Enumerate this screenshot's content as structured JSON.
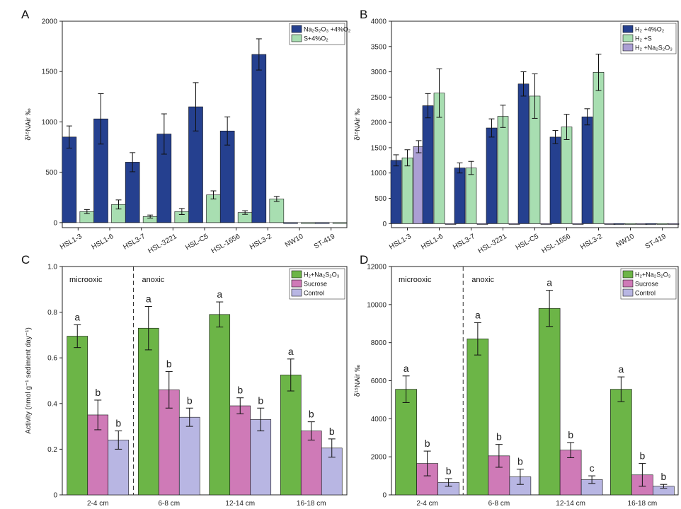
{
  "colors": {
    "navy": "#25408f",
    "green_light": "#a8deb1",
    "lavender": "#ab9fd4",
    "green_dark": "#6cb547",
    "pink": "#cf7ab7",
    "lav_light": "#b8b6e3",
    "axis": "#222222"
  },
  "chart_data": [
    {
      "panel": "A",
      "type": "bar",
      "ylabel": "δ¹⁵NAir ‰",
      "xlabel": "",
      "ylim": [
        -50,
        2000
      ],
      "yticks": [
        0,
        500,
        1000,
        1500,
        2000
      ],
      "categories": [
        "HSL1-3",
        "HSL1-6",
        "HSL3-7",
        "HSL-3221",
        "HSL-C5",
        "HSL-1656",
        "HSL3-2",
        "NW10",
        "ST-419"
      ],
      "legend_position": "top-right",
      "series": [
        {
          "name": "Na₂S₂O₃ +4%O₂",
          "color_key": "navy",
          "values": [
            850,
            1030,
            600,
            880,
            1150,
            910,
            1670,
            -5,
            -5
          ],
          "errors": [
            110,
            250,
            95,
            200,
            240,
            140,
            155,
            0,
            0
          ]
        },
        {
          "name": "S+4%O₂",
          "color_key": "green_light",
          "values": [
            110,
            180,
            60,
            110,
            275,
            100,
            235,
            -5,
            -5
          ],
          "errors": [
            20,
            45,
            15,
            30,
            40,
            18,
            25,
            0,
            0
          ]
        }
      ]
    },
    {
      "panel": "B",
      "type": "bar",
      "ylabel": "δ¹⁵NAir ‰",
      "xlabel": "",
      "ylim": [
        -80,
        4000
      ],
      "yticks": [
        0,
        500,
        1000,
        1500,
        2000,
        2500,
        3000,
        3500,
        4000
      ],
      "categories": [
        "HSL1-3",
        "HSL1-6",
        "HSL3-7",
        "HSL-3221",
        "HSL-C5",
        "HSL-1656",
        "HSL3-2",
        "NW10",
        "ST-419"
      ],
      "legend_position": "top-right",
      "series": [
        {
          "name": "H₂ +4%O₂",
          "color_key": "navy",
          "values": [
            1250,
            2330,
            1100,
            1890,
            2760,
            1710,
            2110,
            -10,
            -10
          ],
          "errors": [
            110,
            240,
            100,
            180,
            240,
            130,
            160,
            0,
            0
          ]
        },
        {
          "name": "H₂ +S",
          "color_key": "green_light",
          "values": [
            1300,
            2580,
            1100,
            2120,
            2520,
            1910,
            2990,
            -10,
            -10
          ],
          "errors": [
            160,
            480,
            130,
            220,
            440,
            250,
            360,
            0,
            0
          ]
        },
        {
          "name": "H₂ +Na₂S₂O₃",
          "color_key": "lavender",
          "values": [
            1520,
            -10,
            -10,
            -10,
            -10,
            -10,
            -10,
            -10,
            -10
          ],
          "errors": [
            120,
            0,
            0,
            0,
            0,
            0,
            0,
            0,
            0
          ]
        }
      ]
    },
    {
      "panel": "C",
      "type": "bar",
      "ylabel": "Activity (nmol g⁻¹ sediment day⁻¹)",
      "xlabel": "",
      "ylim": [
        0,
        1.0
      ],
      "yticks": [
        "0",
        "0.2",
        "0.4",
        "0.6",
        "0.8",
        "1.0"
      ],
      "ytick_values": [
        0,
        0.2,
        0.4,
        0.6,
        0.8,
        1.0
      ],
      "categories": [
        "2-4 cm",
        "6-8 cm",
        "12-14 cm",
        "16-18 cm"
      ],
      "region_labels": [
        "microoxic",
        "anoxic"
      ],
      "legend_position": "top-right",
      "series": [
        {
          "name": "H₂+Na₂S₂O₃",
          "color_key": "green_dark",
          "values": [
            0.695,
            0.73,
            0.79,
            0.525
          ],
          "errors": [
            0.05,
            0.095,
            0.055,
            0.07
          ],
          "letters": [
            "a",
            "a",
            "a",
            "a"
          ]
        },
        {
          "name": "Sucrose",
          "color_key": "pink",
          "values": [
            0.35,
            0.46,
            0.39,
            0.28
          ],
          "errors": [
            0.065,
            0.08,
            0.035,
            0.04
          ],
          "letters": [
            "b",
            "b",
            "b",
            "b"
          ]
        },
        {
          "name": "Control",
          "color_key": "lav_light",
          "values": [
            0.24,
            0.34,
            0.33,
            0.205
          ],
          "errors": [
            0.04,
            0.04,
            0.05,
            0.04
          ],
          "letters": [
            "b",
            "b",
            "b",
            "b"
          ]
        }
      ]
    },
    {
      "panel": "D",
      "type": "bar",
      "ylabel": "δ¹⁵NAir ‰",
      "xlabel": "",
      "ylim": [
        0,
        12000
      ],
      "yticks": [
        0,
        2000,
        4000,
        6000,
        8000,
        10000,
        12000
      ],
      "categories": [
        "2-4 cm",
        "6-8 cm",
        "12-14 cm",
        "16-18 cm"
      ],
      "region_labels": [
        "microoxic",
        "anoxic"
      ],
      "legend_position": "top-right",
      "series": [
        {
          "name": "H₂+Na₂S₂O₃",
          "color_key": "green_dark",
          "values": [
            5550,
            8200,
            9800,
            5550
          ],
          "errors": [
            700,
            850,
            950,
            650
          ],
          "letters": [
            "a",
            "a",
            "a",
            "a"
          ]
        },
        {
          "name": "Sucrose",
          "color_key": "pink",
          "values": [
            1650,
            2050,
            2350,
            1050
          ],
          "errors": [
            650,
            600,
            400,
            600
          ],
          "letters": [
            "b",
            "b",
            "b",
            "b"
          ]
        },
        {
          "name": "Control",
          "color_key": "lav_light",
          "values": [
            650,
            950,
            800,
            450
          ],
          "errors": [
            200,
            400,
            200,
            100
          ],
          "letters": [
            "b",
            "b",
            "c",
            "b"
          ]
        }
      ]
    }
  ]
}
